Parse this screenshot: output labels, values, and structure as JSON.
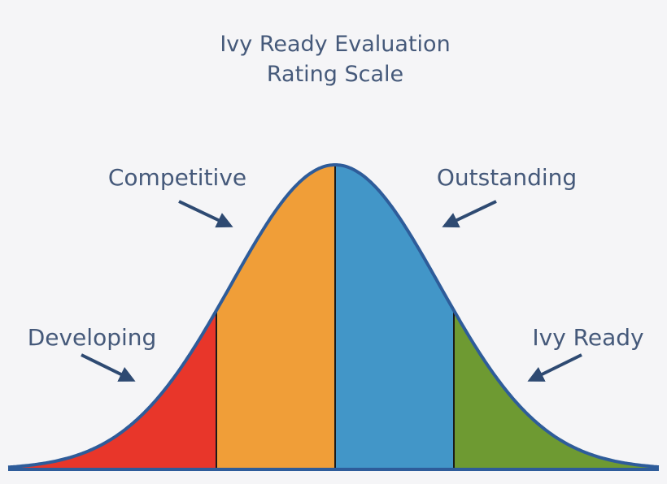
{
  "title": {
    "lines": [
      "Ivy Ready Evaluation",
      "Rating Scale"
    ]
  },
  "regions": [
    {
      "label": "Developing"
    },
    {
      "label": "Competitive"
    },
    {
      "label": "Outstanding"
    },
    {
      "label": "Ivy Ready"
    }
  ]
}
